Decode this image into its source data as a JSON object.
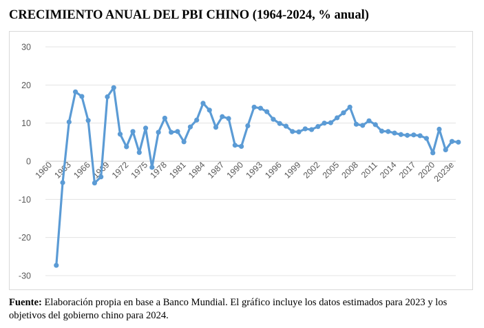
{
  "title": "CRECIMIENTO ANUAL DEL PBI CHINO (1964-2024, % anual)",
  "source": {
    "label": "Fuente:",
    "text": "Elaboración propia en base a Banco Mundial. El gráfico incluye los datos estimados para 2023 y los objetivos del gobierno chino para 2024."
  },
  "chart_data": {
    "type": "line",
    "series_color": "#5b9bd5",
    "grid": true,
    "legend": "none",
    "ylim": [
      -30,
      30
    ],
    "yticks": [
      "30",
      "20",
      "10",
      "0",
      "-10",
      "-20",
      "-30"
    ],
    "xtick_labels": [
      "1960",
      "1963",
      "1966",
      "1969",
      "1972",
      "1975",
      "1978",
      "1981",
      "1984",
      "1987",
      "1990",
      "1993",
      "1996",
      "1999",
      "2002",
      "2005",
      "2008",
      "2011",
      "2014",
      "2017",
      "2020",
      "2023e"
    ],
    "categories": [
      "1961",
      "1962",
      "1963",
      "1964",
      "1965",
      "1966",
      "1967",
      "1968",
      "1969",
      "1970",
      "1971",
      "1972",
      "1973",
      "1974",
      "1975",
      "1976",
      "1977",
      "1978",
      "1979",
      "1980",
      "1981",
      "1982",
      "1983",
      "1984",
      "1985",
      "1986",
      "1987",
      "1988",
      "1989",
      "1990",
      "1991",
      "1992",
      "1993",
      "1994",
      "1995",
      "1996",
      "1997",
      "1998",
      "1999",
      "2000",
      "2001",
      "2002",
      "2003",
      "2004",
      "2005",
      "2006",
      "2007",
      "2008",
      "2009",
      "2010",
      "2011",
      "2012",
      "2013",
      "2014",
      "2015",
      "2016",
      "2017",
      "2018",
      "2019",
      "2020",
      "2021",
      "2022",
      "2023e",
      "2024"
    ],
    "values": [
      -27.3,
      -5.6,
      10.3,
      18.2,
      17.0,
      10.7,
      -5.7,
      -4.1,
      16.9,
      19.3,
      7.1,
      3.8,
      7.8,
      2.3,
      8.7,
      -1.6,
      7.6,
      11.3,
      7.6,
      7.8,
      5.1,
      9.0,
      10.8,
      15.2,
      13.4,
      8.9,
      11.7,
      11.2,
      4.2,
      3.9,
      9.3,
      14.2,
      13.9,
      13.0,
      11.0,
      9.9,
      9.2,
      7.8,
      7.7,
      8.5,
      8.3,
      9.1,
      10.0,
      10.1,
      11.4,
      12.7,
      14.2,
      9.7,
      9.4,
      10.6,
      9.6,
      7.9,
      7.8,
      7.4,
      7.0,
      6.8,
      6.9,
      6.7,
      6.0,
      2.2,
      8.4,
      3.0,
      5.2,
      5.0
    ]
  }
}
